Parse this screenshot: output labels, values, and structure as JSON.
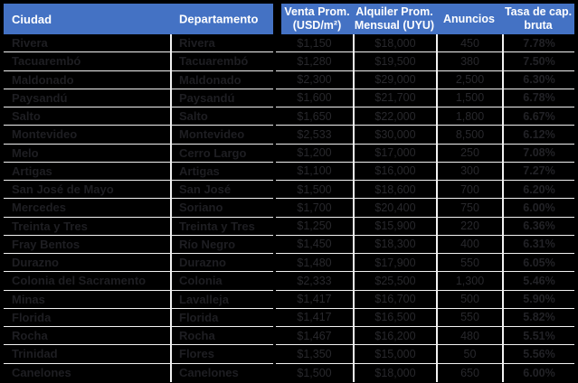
{
  "colors": {
    "header_bg": "#4472C4",
    "header_text": "#FFFFFF",
    "body_bg": "#000000",
    "body_text_dark": "#1E1E22",
    "gridline": "#F2F2F2"
  },
  "table": {
    "columns": {
      "ciudad": "Ciudad",
      "departamento": "Departamento",
      "venta_line1": "Venta Prom.",
      "venta_line2": "(USD/m²)",
      "alquiler_line1": "Alquiler Prom.",
      "alquiler_line2": "Mensual (UYU)",
      "anuncios": "Anuncios",
      "tasa_line1": "Tasa de cap.",
      "tasa_line2": "bruta"
    },
    "rows": [
      {
        "ciudad": "Rivera",
        "departamento": "Rivera",
        "venta": "$1,150",
        "alquiler": "$18,000",
        "anuncios": "450",
        "tasa": "7.78%"
      },
      {
        "ciudad": "Tacuarembó",
        "departamento": "Tacuarembó",
        "venta": "$1,280",
        "alquiler": "$19,500",
        "anuncios": "380",
        "tasa": "7.50%"
      },
      {
        "ciudad": "Maldonado",
        "departamento": "Maldonado",
        "venta": "$2,300",
        "alquiler": "$29,000",
        "anuncios": "2,500",
        "tasa": "6.30%"
      },
      {
        "ciudad": "Paysandú",
        "departamento": "Paysandú",
        "venta": "$1,600",
        "alquiler": "$21,700",
        "anuncios": "1,500",
        "tasa": "6.78%"
      },
      {
        "ciudad": "Salto",
        "departamento": "Salto",
        "venta": "$1,650",
        "alquiler": "$22,000",
        "anuncios": "1,800",
        "tasa": "6.67%"
      },
      {
        "ciudad": "Montevideo",
        "departamento": "Montevideo",
        "venta": "$2,533",
        "alquiler": "$30,000",
        "anuncios": "8,500",
        "tasa": "6.12%"
      },
      {
        "ciudad": "Melo",
        "departamento": "Cerro Largo",
        "venta": "$1,200",
        "alquiler": "$17,000",
        "anuncios": "250",
        "tasa": "7.08%"
      },
      {
        "ciudad": "Artigas",
        "departamento": "Artigas",
        "venta": "$1,100",
        "alquiler": "$16,000",
        "anuncios": "300",
        "tasa": "7.27%"
      },
      {
        "ciudad": "San José de Mayo",
        "departamento": "San José",
        "venta": "$1,500",
        "alquiler": "$18,600",
        "anuncios": "700",
        "tasa": "6.20%"
      },
      {
        "ciudad": "Mercedes",
        "departamento": "Soriano",
        "venta": "$1,700",
        "alquiler": "$20,400",
        "anuncios": "750",
        "tasa": "6.00%"
      },
      {
        "ciudad": "Treinta y Tres",
        "departamento": "Treinta y Tres",
        "venta": "$1,250",
        "alquiler": "$15,900",
        "anuncios": "220",
        "tasa": "6.36%"
      },
      {
        "ciudad": "Fray Bentos",
        "departamento": "Río Negro",
        "venta": "$1,450",
        "alquiler": "$18,300",
        "anuncios": "400",
        "tasa": "6.31%"
      },
      {
        "ciudad": "Durazno",
        "departamento": "Durazno",
        "venta": "$1,480",
        "alquiler": "$17,900",
        "anuncios": "550",
        "tasa": "6.05%"
      },
      {
        "ciudad": "Colonia del Sacramento",
        "departamento": "Colonia",
        "venta": "$2,333",
        "alquiler": "$25,500",
        "anuncios": "1,300",
        "tasa": "5.46%"
      },
      {
        "ciudad": "Minas",
        "departamento": "Lavalleja",
        "venta": "$1,417",
        "alquiler": "$16,700",
        "anuncios": "500",
        "tasa": "5.90%"
      },
      {
        "ciudad": "Florida",
        "departamento": "Florida",
        "venta": "$1,417",
        "alquiler": "$16,500",
        "anuncios": "550",
        "tasa": "5.82%"
      },
      {
        "ciudad": "Rocha",
        "departamento": "Rocha",
        "venta": "$1,467",
        "alquiler": "$16,200",
        "anuncios": "480",
        "tasa": "5.51%"
      },
      {
        "ciudad": "Trinidad",
        "departamento": "Flores",
        "venta": "$1,350",
        "alquiler": "$15,000",
        "anuncios": "50",
        "tasa": "5.56%"
      },
      {
        "ciudad": "Canelones",
        "departamento": "Canelones",
        "venta": "$1,500",
        "alquiler": "$18,000",
        "anuncios": "650",
        "tasa": "6.00%"
      }
    ]
  }
}
